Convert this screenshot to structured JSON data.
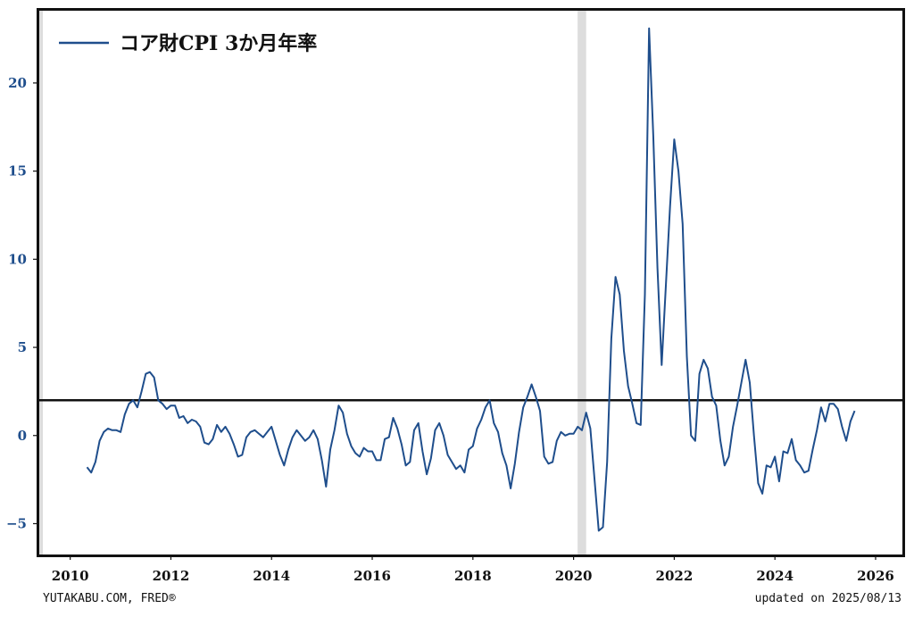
{
  "footer": {
    "source": "YUTAKABU.COM, FRED®",
    "updated": "updated on 2025/08/13"
  },
  "chart_data": {
    "type": "line",
    "title": "",
    "xlabel": "",
    "ylabel": "",
    "xlim": [
      2009.35,
      2026.55
    ],
    "ylim": [
      -6.8,
      24.2
    ],
    "x_ticks": [
      "2010",
      "2012",
      "2014",
      "2016",
      "2018",
      "2020",
      "2022",
      "2024",
      "2026"
    ],
    "y_ticks": [
      "−5",
      "0",
      "5",
      "10",
      "15",
      "20"
    ],
    "legend": {
      "position": "top-left",
      "entries": [
        "コア財CPI 3か月年率"
      ]
    },
    "grid": false,
    "colors": {
      "series": "#1f4e8c",
      "reference": "#111111",
      "recession": "#dddddd"
    },
    "reference_line": {
      "y": 2
    },
    "recession_bands": [
      {
        "from": 2020.08,
        "to": 2020.25
      }
    ],
    "series": [
      {
        "name": "コア財CPI 3か月年率",
        "start": "2010-05",
        "frequency": "monthly",
        "values": [
          -1.8,
          -2.1,
          -1.5,
          -0.3,
          0.2,
          0.4,
          0.3,
          0.3,
          0.2,
          1.2,
          1.8,
          2.0,
          1.6,
          2.5,
          3.5,
          3.6,
          3.3,
          2.0,
          1.8,
          1.5,
          1.7,
          1.7,
          1.0,
          1.1,
          0.7,
          0.9,
          0.8,
          0.5,
          -0.4,
          -0.5,
          -0.2,
          0.6,
          0.2,
          0.5,
          0.1,
          -0.5,
          -1.2,
          -1.1,
          -0.1,
          0.2,
          0.3,
          0.1,
          -0.1,
          0.2,
          0.5,
          -0.3,
          -1.1,
          -1.7,
          -0.8,
          -0.1,
          0.3,
          0.0,
          -0.3,
          -0.1,
          0.3,
          -0.2,
          -1.4,
          -2.9,
          -0.8,
          0.3,
          1.7,
          1.3,
          0.1,
          -0.6,
          -1.0,
          -1.2,
          -0.7,
          -0.9,
          -0.9,
          -1.4,
          -1.4,
          -0.2,
          -0.1,
          1.0,
          0.4,
          -0.5,
          -1.7,
          -1.5,
          0.3,
          0.7,
          -0.9,
          -2.2,
          -1.3,
          0.3,
          0.7,
          0.0,
          -1.1,
          -1.5,
          -1.9,
          -1.7,
          -2.1,
          -0.8,
          -0.6,
          0.4,
          0.9,
          1.6,
          2.0,
          0.7,
          0.2,
          -1.0,
          -1.7,
          -3.0,
          -1.6,
          0.2,
          1.6,
          2.2,
          2.9,
          2.2,
          1.4,
          -1.2,
          -1.6,
          -1.5,
          -0.3,
          0.2,
          0.0,
          0.1,
          0.1,
          0.5,
          0.3,
          1.3,
          0.4,
          -2.5,
          -5.4,
          -5.2,
          -1.5,
          5.5,
          9.0,
          8.0,
          4.8,
          2.8,
          1.8,
          0.7,
          0.6,
          8.0,
          23.1,
          17.0,
          9.5,
          4.0,
          8.5,
          13.0,
          16.8,
          15.0,
          12.0,
          4.5,
          0.0,
          -0.3,
          3.5,
          4.3,
          3.8,
          2.2,
          1.7,
          -0.3,
          -1.7,
          -1.2,
          0.5,
          1.7,
          3.0,
          4.3,
          3.0,
          0.0,
          -2.7,
          -3.3,
          -1.7,
          -1.8,
          -1.2,
          -2.6,
          -0.9,
          -1.0,
          -0.2,
          -1.4,
          -1.7,
          -2.1,
          -2.0,
          -0.8,
          0.3,
          1.6,
          0.8,
          1.8,
          1.8,
          1.5,
          0.5,
          -0.3,
          0.8,
          1.4
        ]
      }
    ]
  }
}
